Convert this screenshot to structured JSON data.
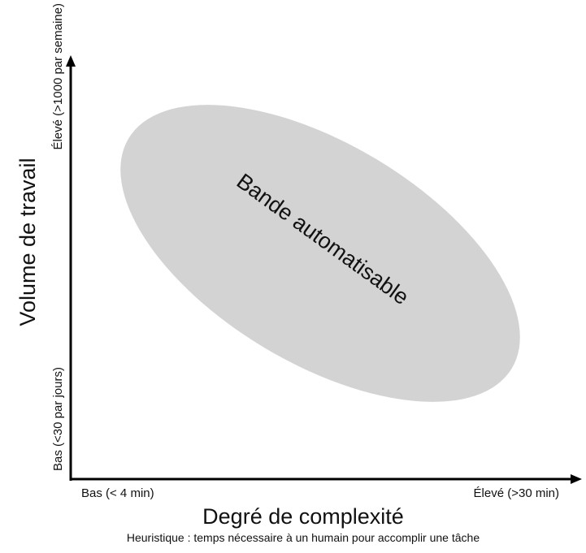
{
  "y_axis": {
    "title": "Volume de travail",
    "high_label": "Élevé (>1000 par semaine)",
    "low_label": "Bas (<30 par jours)"
  },
  "x_axis": {
    "title": "Degré de complexité",
    "low_label": "Bas (< 4 min)",
    "high_label": "Élevé (>30 min)",
    "note": "Heuristique : temps nécessaire à un humain pour accomplir une tâche"
  },
  "band": {
    "label": "Bande automatisable",
    "fill_color": "#d3d3d3"
  },
  "colors": {
    "axis": "#000000",
    "text": "#111111"
  }
}
